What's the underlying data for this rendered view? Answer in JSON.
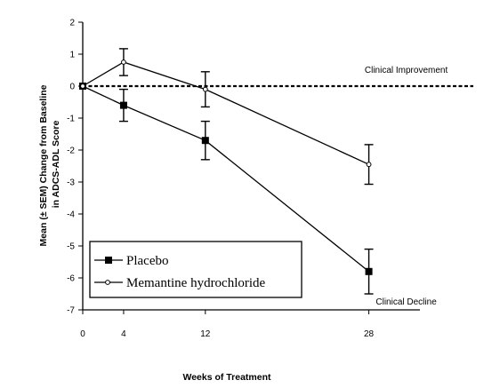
{
  "chart_data": {
    "type": "line",
    "xlabel": "Weeks of Treatment",
    "ylabel_lines": [
      "Mean (± SEM) Change from Baseline",
      "in ADCS-ADL Score"
    ],
    "x_ticks": [
      0,
      4,
      12,
      28
    ],
    "y_ticks": [
      2,
      1,
      0,
      -1,
      -2,
      -3,
      -4,
      -5,
      -6,
      -7
    ],
    "xlim": [
      0,
      33
    ],
    "ylim": [
      -7,
      2
    ],
    "grid": false,
    "legend_position": "bottom-left",
    "reference_line": {
      "y": 0,
      "style": "dashed"
    },
    "annotations": [
      {
        "text": "Clinical Improvement",
        "x": 28,
        "y": 0
      },
      {
        "text": "Clinical Decline",
        "x": 28,
        "y": -7
      }
    ],
    "series": [
      {
        "name": "Placebo",
        "marker": "filled-square",
        "x": [
          0,
          4,
          12,
          28
        ],
        "y": [
          0,
          -0.6,
          -1.7,
          -5.8
        ],
        "err": [
          0,
          0.5,
          0.6,
          0.7
        ]
      },
      {
        "name": "Memantine hydrochloride",
        "marker": "open-circle",
        "x": [
          0,
          4,
          12,
          28
        ],
        "y": [
          0,
          0.75,
          -0.1,
          -2.45
        ],
        "err": [
          0,
          0.42,
          0.55,
          0.62
        ]
      }
    ]
  }
}
